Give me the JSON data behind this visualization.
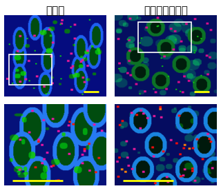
{
  "title_left": "健常人",
  "title_right": "クローン病患者",
  "bg_color": "#ffffff",
  "title_fontsize": 11,
  "figure_width": 3.2,
  "figure_height": 2.8,
  "dpi": 100
}
